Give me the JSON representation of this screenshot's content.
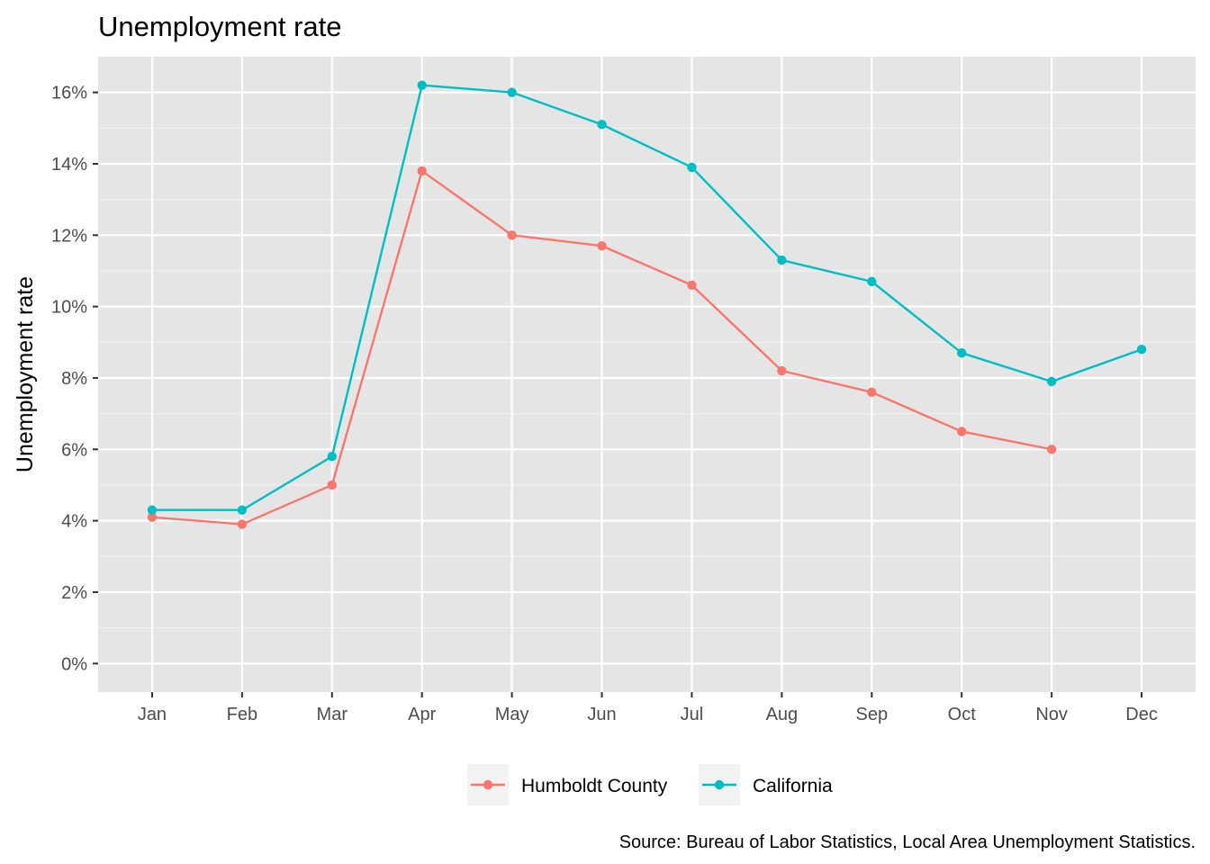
{
  "chart_data": {
    "type": "line",
    "title": "Unemployment rate",
    "xlabel": "",
    "ylabel": "Unemployment rate",
    "categories": [
      "Jan",
      "Feb",
      "Mar",
      "Apr",
      "May",
      "Jun",
      "Jul",
      "Aug",
      "Sep",
      "Oct",
      "Nov",
      "Dec"
    ],
    "y_ticks": [
      0,
      2,
      4,
      6,
      8,
      10,
      12,
      14,
      16
    ],
    "y_tick_labels": [
      "0%",
      "2%",
      "4%",
      "6%",
      "8%",
      "10%",
      "12%",
      "14%",
      "16%"
    ],
    "ylim": [
      -0.8,
      17.0
    ],
    "grid": true,
    "legend_position": "bottom",
    "series": [
      {
        "name": "Humboldt County",
        "color": "#f8766d",
        "values": [
          4.1,
          3.9,
          5.0,
          13.8,
          12.0,
          11.7,
          10.6,
          8.2,
          7.6,
          6.5,
          6.0,
          null
        ]
      },
      {
        "name": "California",
        "color": "#00bfc4",
        "values": [
          4.3,
          4.3,
          5.8,
          16.2,
          16.0,
          15.1,
          13.9,
          11.3,
          10.7,
          8.7,
          7.9,
          8.8
        ]
      }
    ],
    "caption": "Source: Bureau of Labor Statistics, Local Area Unemployment Statistics."
  },
  "colors": {
    "panel_background": "#e5e5e5",
    "legend_key_background": "#f2f2f2"
  }
}
